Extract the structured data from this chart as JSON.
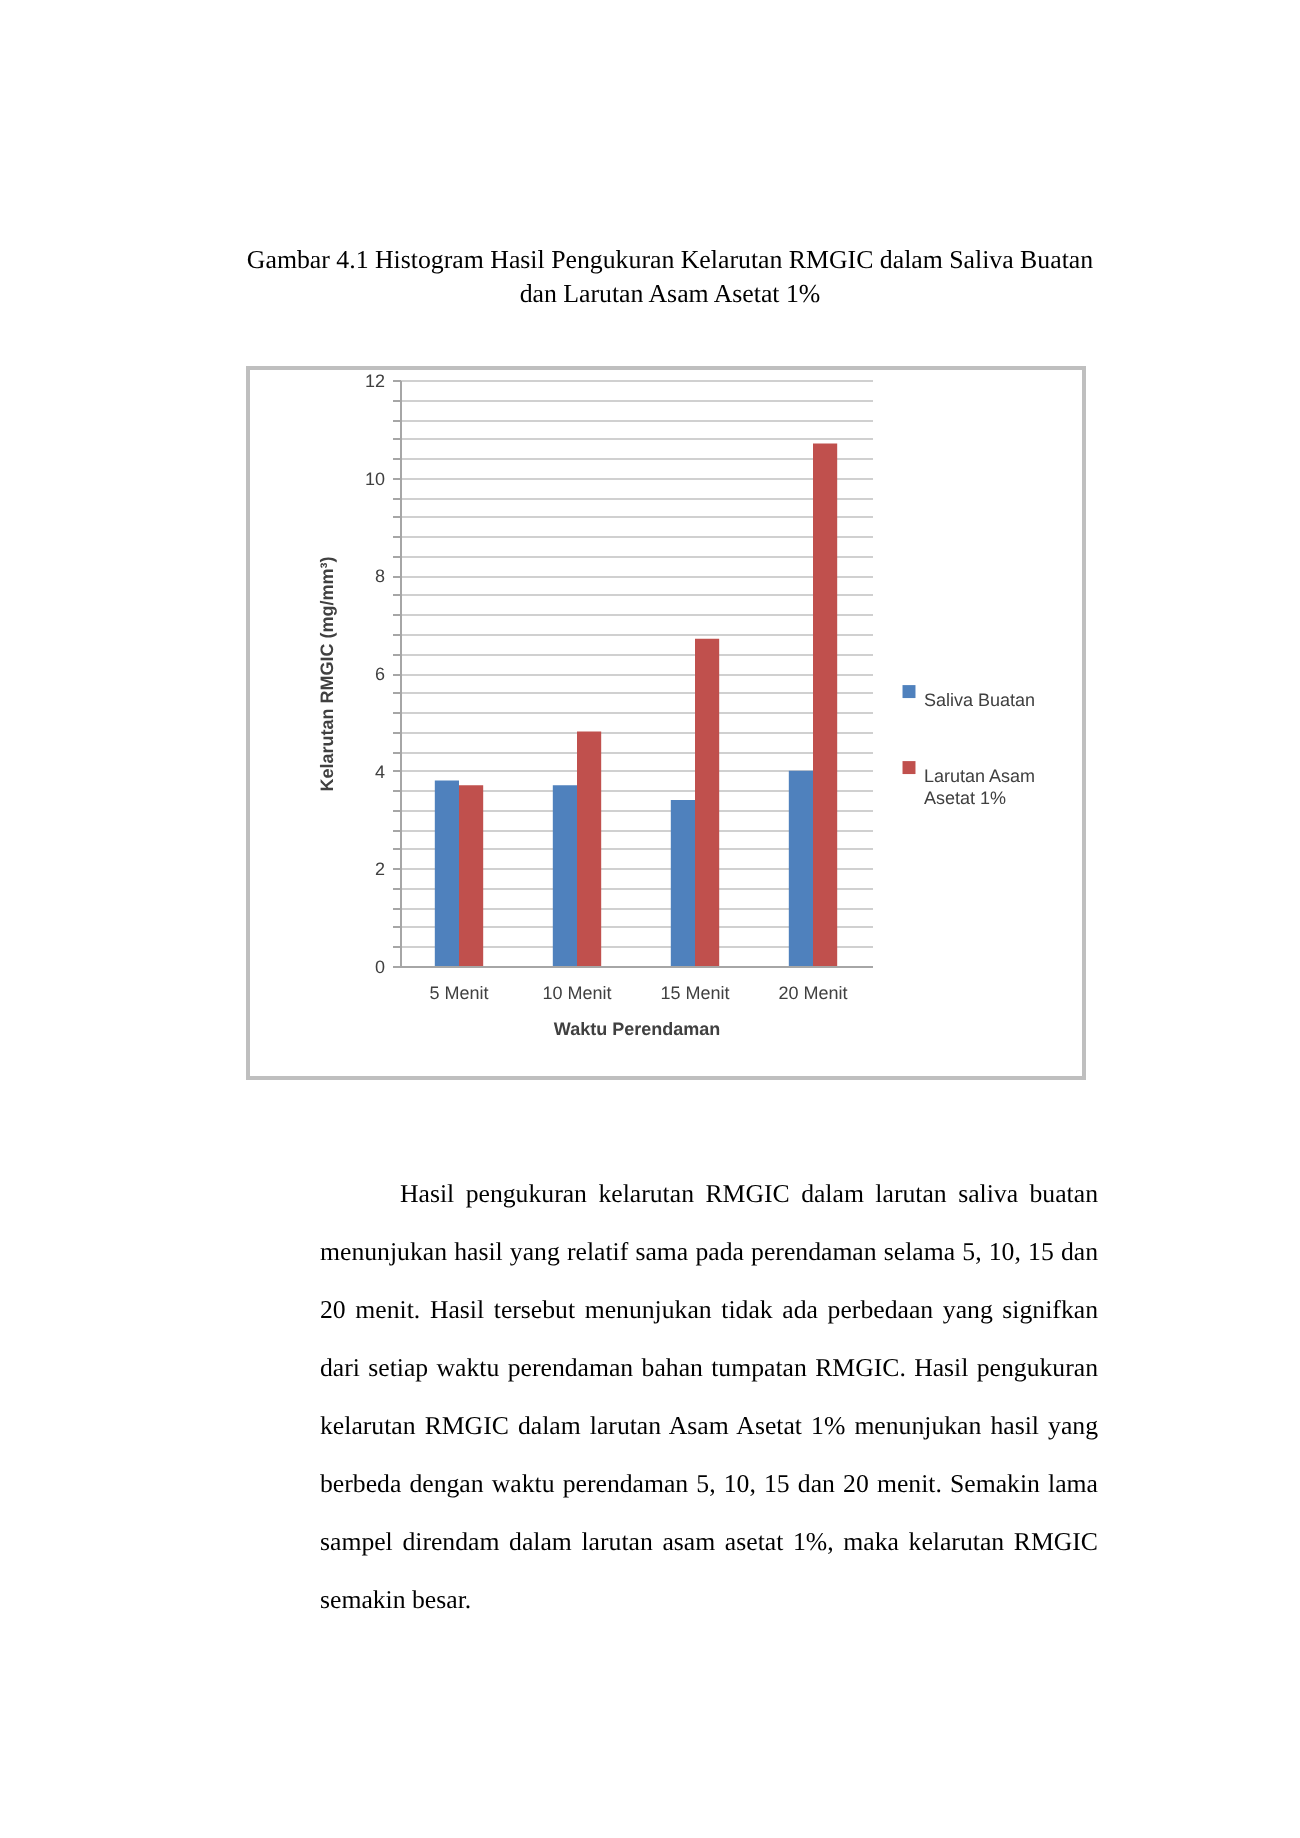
{
  "chart_data": {
    "type": "bar",
    "title": "Gambar 4.1 Histogram Hasil Pengukuran Kelarutan RMGIC dalam Saliva Buatan dan Larutan Asam Asetat 1%",
    "xlabel": "Waktu Perendaman",
    "ylabel": "Kelarutan RMGIC (mg/mm³)",
    "categories": [
      "5 Menit",
      "10 Menit",
      "15 Menit",
      "20 Menit"
    ],
    "series": [
      {
        "name": "Saliva Buatan",
        "color": "#4f81bd",
        "values": [
          3.8,
          3.7,
          3.4,
          4.0
        ]
      },
      {
        "name": "Larutan Asam Asetat 1%",
        "color": "#c0504d",
        "values": [
          3.7,
          4.8,
          6.7,
          10.7
        ]
      }
    ],
    "ylim": [
      0,
      12
    ],
    "yticks": [
      0,
      {
        "value": 0.4,
        "label": null
      },
      {
        "value": 0.8,
        "label": null
      },
      {
        "value": 1.2,
        "label": null
      },
      {
        "value": 1.6,
        "label": null
      },
      2,
      {
        "value": 2.4,
        "label": null
      },
      {
        "value": 2.8,
        "label": null
      },
      {
        "value": 3.2,
        "label": null
      },
      {
        "value": 3.6,
        "label": null
      },
      4,
      {
        "value": 4.4,
        "label": null
      },
      {
        "value": 4.8,
        "label": null
      },
      {
        "value": 5.2,
        "label": null
      },
      {
        "value": 5.6,
        "label": null
      },
      6,
      {
        "value": 6.4,
        "label": null
      },
      {
        "value": 6.8,
        "label": null
      },
      {
        "value": 7.2,
        "label": null
      },
      {
        "value": 7.6,
        "label": null
      },
      8,
      {
        "value": 8.4,
        "label": null
      },
      {
        "value": 8.8,
        "label": null
      },
      {
        "value": 9.2,
        "label": null
      },
      {
        "value": 9.6,
        "label": null
      },
      10,
      {
        "value": 10.4,
        "label": null
      },
      {
        "value": 10.8,
        "label": null
      },
      {
        "value": 11.2,
        "label": null
      },
      {
        "value": 11.6,
        "label": null
      },
      12
    ],
    "grid": "y",
    "legend": "right",
    "annotations": [
      "Hasil pengukuran kelarutan RMGIC dalam larutan saliva buatan menunjukan hasil yang relatif sama pada perendaman selama 5, 10, 15 dan 20 menit. Hasil tersebut menunjukan tidak ada perbedaan yang signifkan dari setiap waktu perendaman bahan tumpatan RMGIC. Hasil pengukuran kelarutan RMGIC dalam larutan Asam Asetat 1% menunjukan hasil yang berbeda dengan waktu perendaman 5, 10, 15 dan 20 menit. Semakin lama sampel direndam dalam larutan asam asetat 1%, maka kelarutan RMGIC semakin besar."
    ]
  }
}
